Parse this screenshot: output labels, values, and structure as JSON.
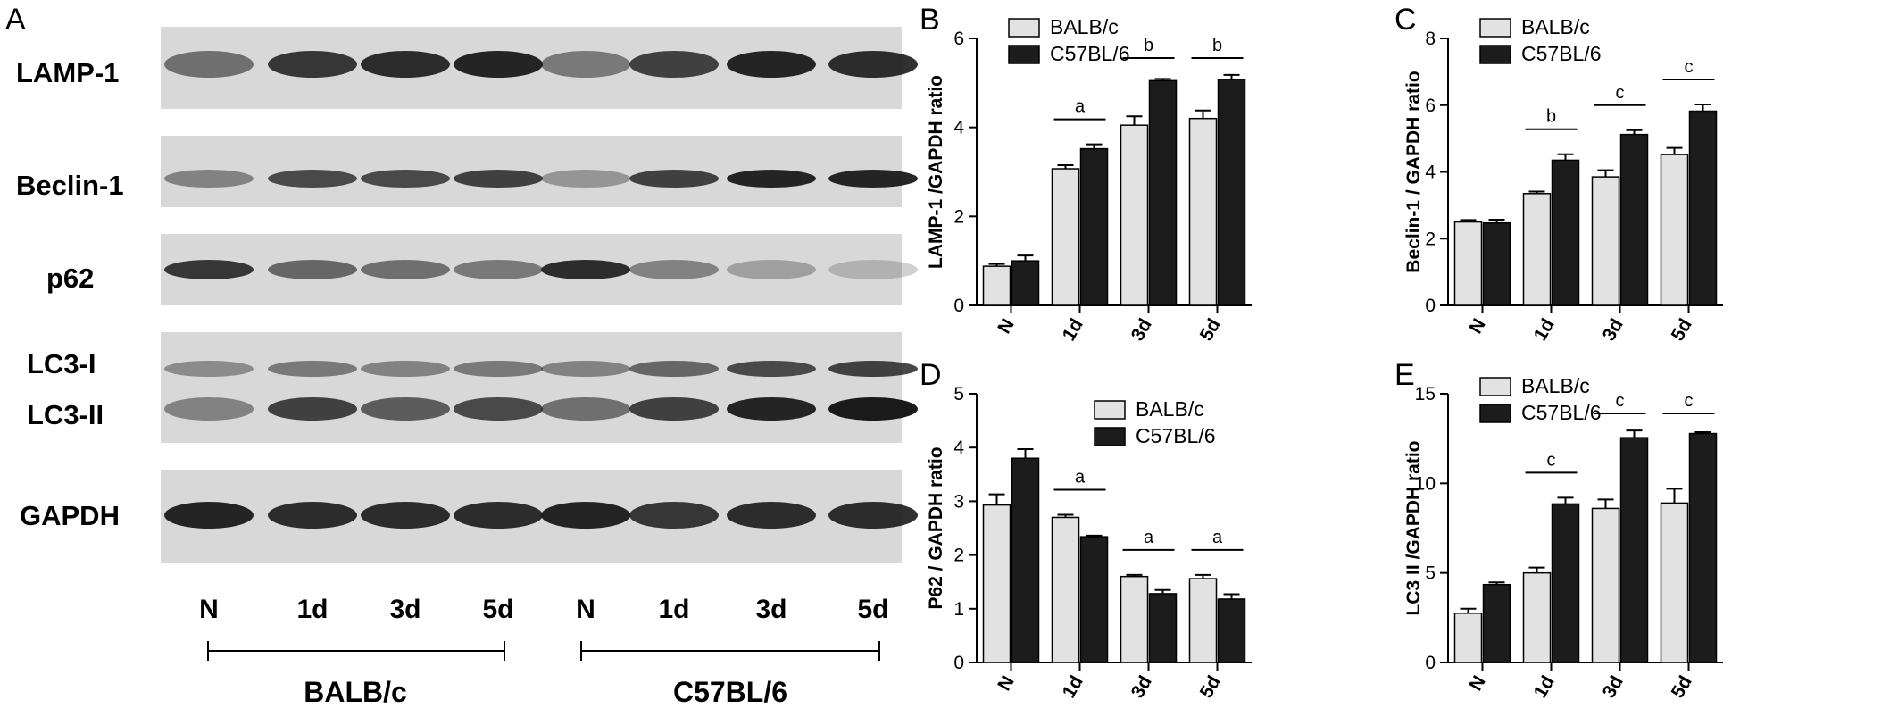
{
  "colors": {
    "balb": "#e2e2e2",
    "c57": "#1c1c1c",
    "axis": "#000000",
    "blot_bg": "#d8d8d8",
    "band": "#1a1a1a"
  },
  "blot": {
    "panel_letter": "A",
    "rows": [
      {
        "name": "lamp1",
        "label": "LAMP-1",
        "intensities": [
          0.55,
          0.85,
          0.9,
          0.95,
          0.5,
          0.8,
          0.95,
          0.9
        ]
      },
      {
        "name": "beclin1",
        "label": "Beclin-1",
        "intensities": [
          0.45,
          0.75,
          0.75,
          0.8,
          0.35,
          0.8,
          0.95,
          0.95
        ]
      },
      {
        "name": "p62",
        "label": "p62",
        "intensities": [
          0.85,
          0.6,
          0.55,
          0.5,
          0.9,
          0.45,
          0.3,
          0.2
        ]
      },
      {
        "name": "lc3",
        "label_top": "LC3-I",
        "label_bottom": "LC3-II",
        "intensities_top": [
          0.4,
          0.5,
          0.45,
          0.5,
          0.45,
          0.6,
          0.75,
          0.8
        ],
        "intensities_bottom": [
          0.45,
          0.8,
          0.65,
          0.75,
          0.55,
          0.8,
          0.95,
          1.0
        ]
      },
      {
        "name": "gapdh",
        "label": "GAPDH",
        "intensities": [
          0.95,
          0.9,
          0.9,
          0.9,
          0.95,
          0.85,
          0.9,
          0.9
        ]
      }
    ],
    "lanes": [
      "N",
      "1d",
      "3d",
      "5d",
      "N",
      "1d",
      "3d",
      "5d"
    ],
    "groups": [
      "BALB/c",
      "C57BL/6"
    ]
  },
  "chart_data": [
    {
      "panel": "B",
      "type": "bar",
      "categories": [
        "N",
        "1d",
        "3d",
        "5d"
      ],
      "ylabel": "LAMP-1 /GAPDH ratio",
      "xlabel": "",
      "ylim": [
        0,
        6
      ],
      "yticks": [
        0,
        2,
        4,
        6
      ],
      "series": [
        {
          "name": "BALB/c",
          "values": [
            0.88,
            3.07,
            4.05,
            4.2
          ],
          "errors": [
            0.05,
            0.08,
            0.2,
            0.18
          ]
        },
        {
          "name": "C57BL/6",
          "values": [
            1.0,
            3.52,
            5.05,
            5.08
          ],
          "errors": [
            0.12,
            0.1,
            0.04,
            0.1
          ]
        }
      ],
      "significance": [
        "",
        "a",
        "b",
        "b"
      ],
      "legend": "top-left"
    },
    {
      "panel": "C",
      "type": "bar",
      "categories": [
        "N",
        "1d",
        "3d",
        "5d"
      ],
      "ylabel": "Beclin-1 / GAPDH ratio",
      "xlabel": "",
      "ylim": [
        0,
        8
      ],
      "yticks": [
        0,
        2,
        4,
        6,
        8
      ],
      "series": [
        {
          "name": "BALB/c",
          "values": [
            2.5,
            3.35,
            3.85,
            4.52
          ],
          "errors": [
            0.06,
            0.06,
            0.2,
            0.2
          ]
        },
        {
          "name": "C57BL/6",
          "values": [
            2.47,
            4.35,
            5.12,
            5.82
          ],
          "errors": [
            0.1,
            0.18,
            0.13,
            0.2
          ]
        }
      ],
      "significance": [
        "",
        "b",
        "c",
        "c"
      ],
      "legend": "top-left"
    },
    {
      "panel": "D",
      "type": "bar",
      "categories": [
        "N",
        "1d",
        "3d",
        "5d"
      ],
      "ylabel": "P62 / GAPDH ratio",
      "xlabel": "",
      "ylim": [
        0,
        5
      ],
      "yticks": [
        0,
        1,
        2,
        3,
        4,
        5
      ],
      "series": [
        {
          "name": "BALB/c",
          "values": [
            2.93,
            2.7,
            1.6,
            1.56
          ],
          "errors": [
            0.2,
            0.05,
            0.03,
            0.07
          ]
        },
        {
          "name": "C57BL/6",
          "values": [
            3.8,
            2.34,
            1.28,
            1.18
          ],
          "errors": [
            0.17,
            0.02,
            0.07,
            0.09
          ]
        }
      ],
      "significance": [
        "",
        "a",
        "a",
        "a"
      ],
      "legend": "top-right"
    },
    {
      "panel": "E",
      "type": "bar",
      "categories": [
        "N",
        "1d",
        "3d",
        "5d"
      ],
      "ylabel": "LC3 II /GAPDH ratio",
      "xlabel": "",
      "ylim": [
        0,
        15
      ],
      "yticks": [
        0,
        5,
        10,
        15
      ],
      "series": [
        {
          "name": "BALB/c",
          "values": [
            2.75,
            5.0,
            8.6,
            8.9
          ],
          "errors": [
            0.25,
            0.3,
            0.5,
            0.8
          ]
        },
        {
          "name": "C57BL/6",
          "values": [
            4.35,
            8.85,
            12.55,
            12.78
          ],
          "errors": [
            0.12,
            0.35,
            0.4,
            0.08
          ]
        }
      ],
      "significance": [
        "",
        "c",
        "c",
        "c"
      ],
      "legend": "top-left"
    }
  ]
}
